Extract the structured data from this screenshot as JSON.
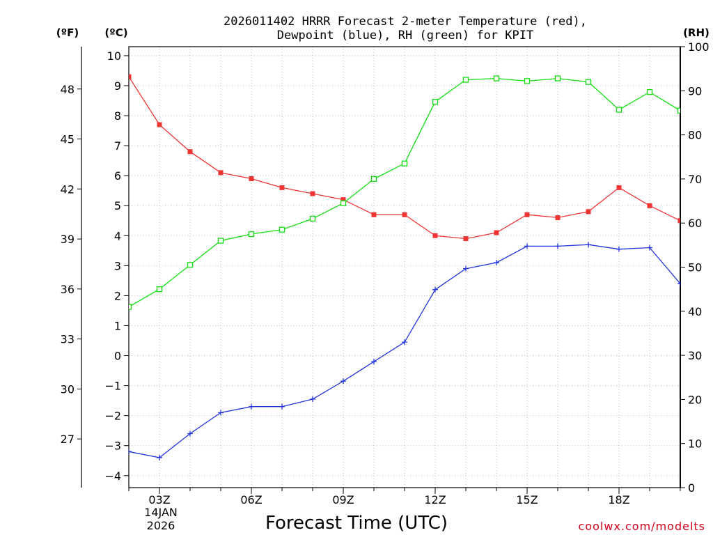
{
  "chart_data": {
    "type": "line",
    "title": [
      "2026011402 HRRR Forecast 2-meter Temperature (red),",
      "Dewpoint (blue), RH (green) for KPIT"
    ],
    "xlabel": "Forecast Time (UTC)",
    "credit": "coolwx.com/modelts",
    "units": {
      "fahrenheit": "(ºF)",
      "celsius": "(ºC)",
      "rh": "(RH)"
    },
    "x_hours": [
      2,
      3,
      4,
      5,
      6,
      7,
      8,
      9,
      10,
      11,
      12,
      13,
      14,
      15,
      16,
      17,
      18,
      19,
      20
    ],
    "x_range": [
      2,
      20
    ],
    "x_tick_hours": [
      3,
      6,
      9,
      12,
      15,
      18
    ],
    "x_tick_labels": [
      "03Z",
      "06Z",
      "09Z",
      "12Z",
      "15Z",
      "18Z"
    ],
    "date_label": [
      "14JAN",
      "2026"
    ],
    "left_c_axis": {
      "range": [
        -4.4,
        10.3
      ],
      "ticks": [
        -4,
        -3,
        -2,
        -1,
        0,
        1,
        2,
        3,
        4,
        5,
        6,
        7,
        8,
        9,
        10
      ]
    },
    "left_f_axis": {
      "ticks": [
        27,
        30,
        33,
        36,
        39,
        42,
        45,
        48
      ]
    },
    "right_rh_axis": {
      "range": [
        0,
        100
      ],
      "ticks": [
        0,
        10,
        20,
        30,
        40,
        50,
        60,
        70,
        80,
        90,
        100
      ]
    },
    "grid": true,
    "series": [
      {
        "name": "Temperature",
        "axis": "C",
        "color": "#ee3333",
        "marker": "filled-square",
        "values": [
          9.3,
          7.7,
          6.8,
          6.1,
          5.9,
          5.6,
          5.4,
          5.2,
          4.7,
          4.7,
          4.0,
          3.9,
          4.1,
          4.7,
          4.6,
          4.8,
          5.6,
          5.0,
          4.5
        ]
      },
      {
        "name": "Dewpoint",
        "axis": "C",
        "color": "#2233dd",
        "marker": "plus",
        "values": [
          -3.2,
          -3.4,
          -2.6,
          -1.9,
          -1.7,
          -1.7,
          -1.45,
          -0.85,
          -0.2,
          0.45,
          2.2,
          2.9,
          3.1,
          3.65,
          3.65,
          3.7,
          3.55,
          3.6,
          2.4
        ]
      },
      {
        "name": "RH",
        "axis": "RH",
        "color": "#11dd11",
        "marker": "open-square",
        "values": [
          41,
          45,
          50.5,
          56,
          57.5,
          58.5,
          61,
          64.5,
          70,
          73.5,
          87.5,
          92.5,
          92.8,
          92.2,
          92.8,
          92,
          85.7,
          89.7,
          85.5
        ]
      }
    ]
  }
}
